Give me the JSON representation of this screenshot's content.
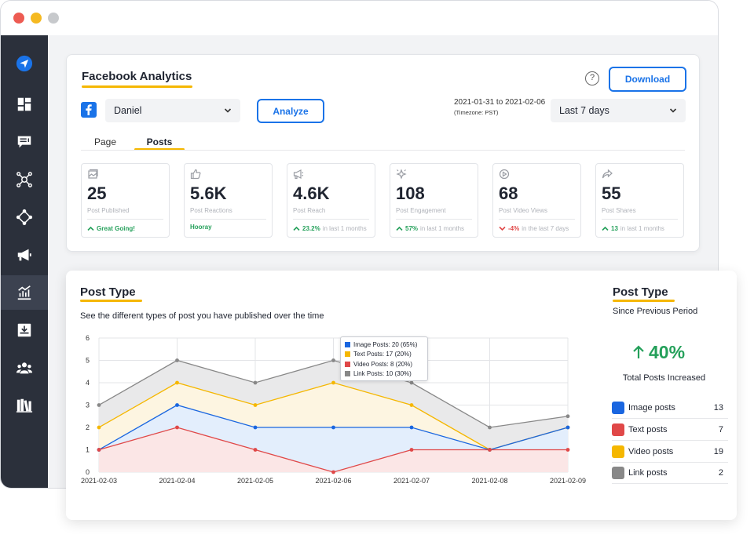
{
  "header": {
    "title": "Facebook Analytics",
    "help_label": "?",
    "download_label": "Download",
    "account_select": "Daniel",
    "analyze_label": "Analyze",
    "date_range": "2021-01-31 to 2021-02-06",
    "timezone": "(Timezone: PST)",
    "period_select": "Last 7 days"
  },
  "tabs": [
    {
      "label": "Page",
      "active": false
    },
    {
      "label": "Posts",
      "active": true
    }
  ],
  "stats": [
    {
      "icon": "image-icon",
      "value": "25",
      "label": "Post Published",
      "trend": "up",
      "highlight": "Great Going!",
      "suffix": ""
    },
    {
      "icon": "thumbs-up-icon",
      "value": "5.6K",
      "label": "Post Reactions",
      "trend": "none",
      "highlight": "Hooray",
      "suffix": ""
    },
    {
      "icon": "megaphone-icon",
      "value": "4.6K",
      "label": "Post Reach",
      "trend": "up",
      "highlight": "23.2%",
      "suffix": "in last 1 months"
    },
    {
      "icon": "sparkle-icon",
      "value": "108",
      "label": "Post Engagement",
      "trend": "up",
      "highlight": "57%",
      "suffix": "in last 1 months"
    },
    {
      "icon": "play-icon",
      "value": "68",
      "label": "Post Video Views",
      "trend": "down",
      "highlight": "-4%",
      "suffix": "in the last 7 days"
    },
    {
      "icon": "share-icon",
      "value": "55",
      "label": "Post Shares",
      "trend": "up",
      "highlight": "13",
      "suffix": "in last 1 months"
    }
  ],
  "post_type": {
    "title": "Post Type",
    "description": "See the different types of post you have published over the time"
  },
  "tooltip": [
    {
      "label": "Image Posts: 20 (65%)",
      "color": "#1a66e0"
    },
    {
      "label": "Text Posts: 17 (20%)",
      "color": "#f5b700"
    },
    {
      "label": "Video Posts: 8 (20%)",
      "color": "#e04848"
    },
    {
      "label": "Link Posts: 10 (30%)",
      "color": "#888888"
    }
  ],
  "summary": {
    "title": "Post Type",
    "subtitle": "Since Previous Period",
    "change": "40%",
    "change_label": "Total Posts Increased",
    "items": [
      {
        "label": "Image posts",
        "count": "13",
        "color": "#1a66e0"
      },
      {
        "label": "Text posts",
        "count": "7",
        "color": "#e04848"
      },
      {
        "label": "Video posts",
        "count": "19",
        "color": "#f5b700"
      },
      {
        "label": "Link posts",
        "count": "2",
        "color": "#888888"
      }
    ]
  },
  "chart_data": {
    "type": "area",
    "categories": [
      "2021-02-03",
      "2021-02-04",
      "2021-02-05",
      "2021-02-06",
      "2021-02-07",
      "2021-02-08",
      "2021-02-09"
    ],
    "ylim": [
      0,
      6
    ],
    "yticks": [
      0,
      1,
      2,
      3,
      4,
      5,
      6
    ],
    "grid": true,
    "series": [
      {
        "name": "Link Posts",
        "color": "#888888",
        "fill": "#e9e9ea",
        "values": [
          3,
          5,
          4,
          5,
          4,
          2,
          2.5
        ]
      },
      {
        "name": "Text Posts",
        "color": "#f5b700",
        "fill": "#fdf5e1",
        "values": [
          2,
          4,
          3,
          4,
          3,
          1,
          2
        ]
      },
      {
        "name": "Image Posts",
        "color": "#1a66e0",
        "fill": "#e3eefc",
        "values": [
          1,
          3,
          2,
          2,
          2,
          1,
          2
        ]
      },
      {
        "name": "Video Posts",
        "color": "#e04848",
        "fill": "#fbe6e6",
        "values": [
          1,
          2,
          1,
          0,
          1,
          1,
          1
        ]
      }
    ]
  }
}
